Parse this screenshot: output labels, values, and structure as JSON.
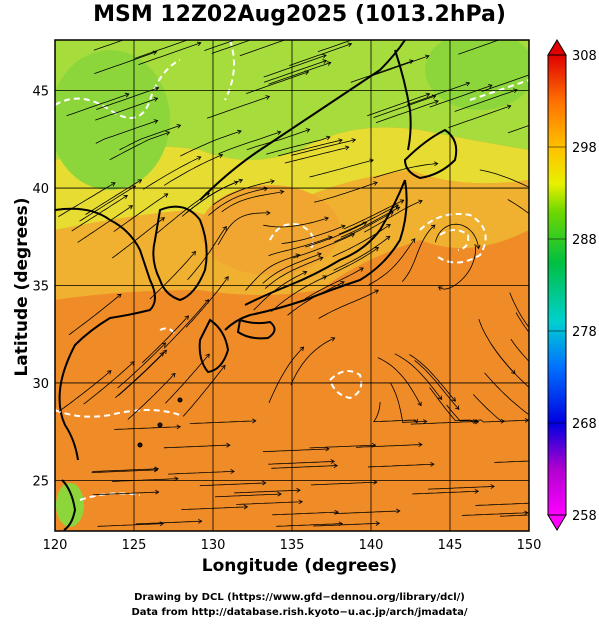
{
  "title": "MSM 12Z02Aug2025 (1013.2hPa)",
  "axes": {
    "xlabel": "Longitude (degrees)",
    "ylabel": "Latitude  (degrees)",
    "xlim": [
      120,
      150
    ],
    "ylim": [
      22.4,
      47.6
    ],
    "xticks": [
      120,
      125,
      130,
      135,
      140,
      145,
      150
    ],
    "yticks": [
      25,
      30,
      35,
      40,
      45
    ]
  },
  "colorbar": {
    "min": 258,
    "max": 308,
    "labels": [
      308,
      298,
      288,
      278,
      268,
      258
    ],
    "colors": [
      "#ff00ff",
      "#c000d0",
      "#4000c0",
      "#0000ff",
      "#0060ff",
      "#00b0ff",
      "#00e0e0",
      "#00d080",
      "#00c000",
      "#80e000",
      "#e0f000",
      "#ffd000",
      "#ffa000",
      "#ff7000",
      "#ff3000",
      "#e00000"
    ]
  },
  "credits": {
    "line1": "Drawing by DCL (https://www.gfd−dennou.org/library/dcl/)",
    "line2": "Data from http://database.rish.kyoto−u.ac.jp/arch/jmadata/"
  },
  "field_colors": {
    "warm": "#f08c28",
    "mid": "#f0b030",
    "yellow": "#e6dc32",
    "green": "#96dc3c"
  }
}
